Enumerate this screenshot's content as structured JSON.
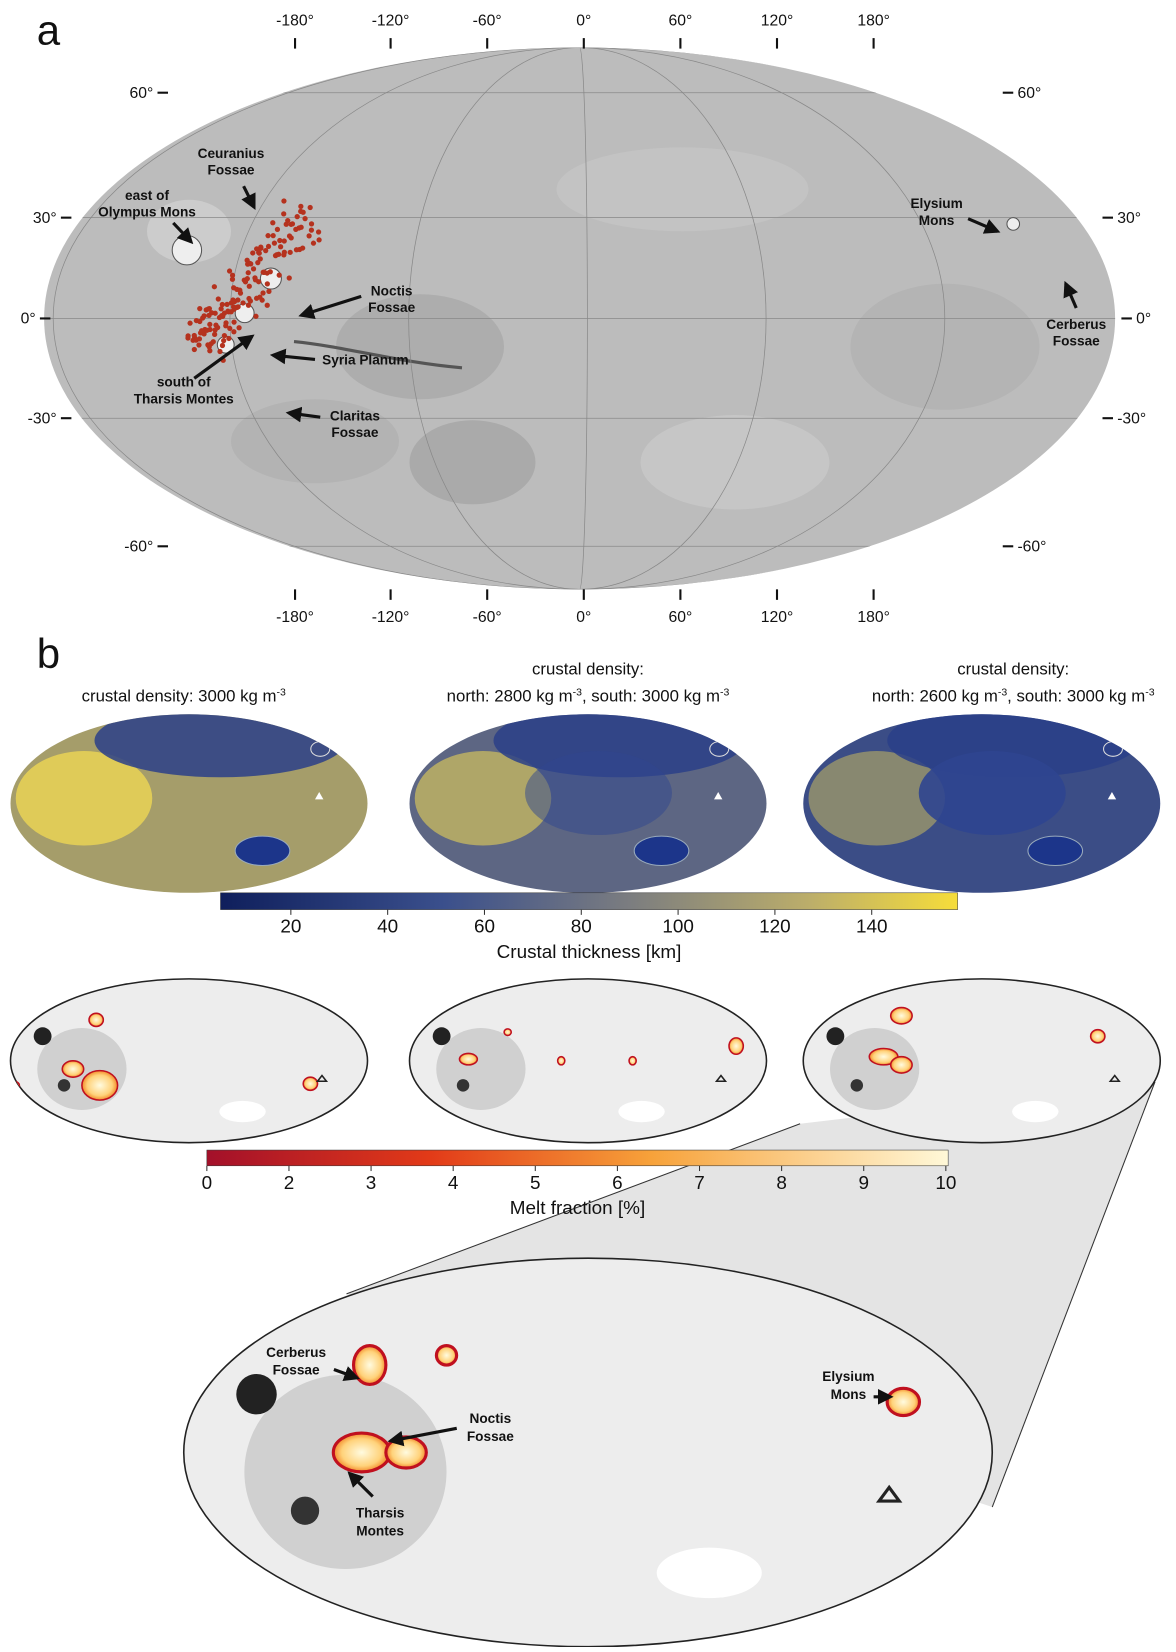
{
  "panel_a": {
    "label": "a",
    "lon_labels_top": [
      "-180°",
      "-120°",
      "-60°",
      "0°",
      "60°",
      "120°",
      "180°"
    ],
    "lon_labels_bottom": [
      "-180°",
      "-120°",
      "-60°",
      "0°",
      "60°",
      "120°",
      "180°"
    ],
    "lat_labels_left": [
      "60°",
      "30°",
      "0°",
      "-30°",
      "-60°"
    ],
    "lat_labels_right": [
      "60°",
      "30°",
      "0°",
      "-30°",
      "-60°"
    ],
    "annotations": [
      {
        "lines": [
          "Ceuranius",
          "Fossae"
        ]
      },
      {
        "lines": [
          "east of",
          "Olympus Mons"
        ]
      },
      {
        "lines": [
          "Noctis",
          "Fossae"
        ]
      },
      {
        "lines": [
          "Syria Planum"
        ]
      },
      {
        "lines": [
          "south of",
          "Tharsis Montes"
        ]
      },
      {
        "lines": [
          "Claritas",
          "Fossae"
        ]
      },
      {
        "lines": [
          "Elysium",
          "Mons"
        ]
      },
      {
        "lines": [
          "Cerberus",
          "Fossae"
        ]
      }
    ]
  },
  "panel_b": {
    "label": "b",
    "map_titles": [
      {
        "lines": [
          [
            "crustal density: 3000 kg m",
            "-3"
          ]
        ]
      },
      {
        "lines": [
          [
            "crustal density:"
          ],
          [
            "north: 2800 kg m",
            "-3",
            ", south: 3000 kg m",
            "-3"
          ]
        ]
      },
      {
        "lines": [
          [
            "crustal density:"
          ],
          [
            "north: 2600 kg m",
            "-3",
            ", south: 3000 kg m",
            "-3"
          ]
        ]
      }
    ],
    "thickness_colorbar": {
      "ticks": [
        "20",
        "40",
        "60",
        "80",
        "100",
        "120",
        "140"
      ],
      "label": "Crustal thickness [km]"
    },
    "melt_colorbar": {
      "ticks": [
        "0",
        "2",
        "3",
        "4",
        "5",
        "6",
        "7",
        "8",
        "9",
        "10"
      ],
      "label": "Melt fraction [%]"
    },
    "zoom_annotations": [
      {
        "lines": [
          "Cerberus",
          "Fossae"
        ]
      },
      {
        "lines": [
          "Noctis",
          "Fossae"
        ]
      },
      {
        "lines": [
          "Tharsis",
          "Montes"
        ]
      },
      {
        "lines": [
          "Elysium",
          "Mons"
        ]
      }
    ]
  }
}
